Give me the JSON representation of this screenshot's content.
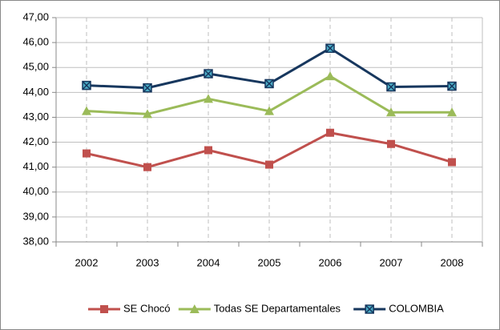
{
  "chart_data": {
    "type": "line",
    "categories": [
      "2002",
      "2003",
      "2004",
      "2005",
      "2006",
      "2007",
      "2008"
    ],
    "series": [
      {
        "name": "SE Chocó",
        "color": "#c0504d",
        "marker": "square",
        "values": [
          41.55,
          41.0,
          41.68,
          41.1,
          42.38,
          41.93,
          41.2
        ]
      },
      {
        "name": "Todas SE Departamentales",
        "color": "#9bbb59",
        "marker": "triangle",
        "values": [
          43.25,
          43.13,
          43.74,
          43.25,
          44.65,
          43.2,
          43.2
        ]
      },
      {
        "name": "COLOMBIA",
        "color": "#17375e",
        "marker": "x-square",
        "values": [
          44.28,
          44.18,
          44.75,
          44.35,
          45.77,
          44.22,
          44.25
        ]
      }
    ],
    "ylim": [
      38,
      47
    ],
    "yticks": [
      {
        "value": 38,
        "label": "38,00"
      },
      {
        "value": 39,
        "label": "39,00"
      },
      {
        "value": 40,
        "label": "40,00"
      },
      {
        "value": 41,
        "label": "41,00"
      },
      {
        "value": 42,
        "label": "42,00"
      },
      {
        "value": 43,
        "label": "43,00"
      },
      {
        "value": 44,
        "label": "44,00"
      },
      {
        "value": 45,
        "label": "45,00"
      },
      {
        "value": 46,
        "label": "46,00"
      },
      {
        "value": 47,
        "label": "47,00"
      }
    ],
    "grid": true,
    "legend": "bottom"
  }
}
